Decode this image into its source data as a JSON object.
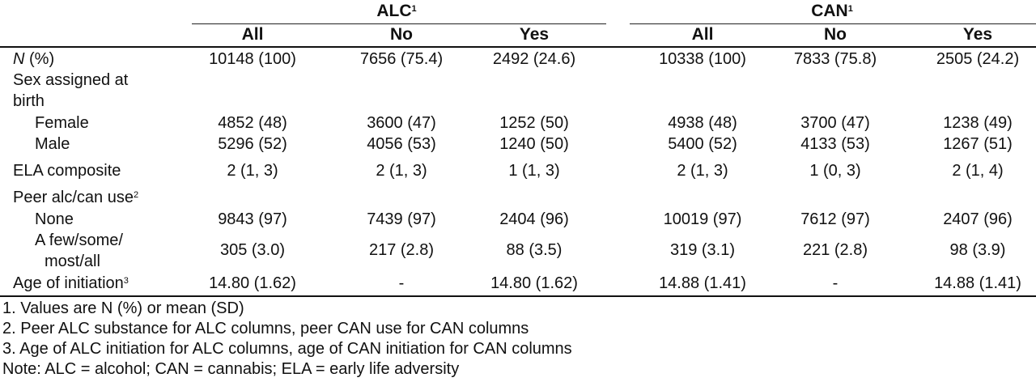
{
  "group_headers": [
    {
      "label": "ALC",
      "note": "1"
    },
    {
      "label": "CAN",
      "note": "1"
    }
  ],
  "columns": [
    "All",
    "No",
    "Yes",
    "All",
    "No",
    "Yes"
  ],
  "rows": [
    {
      "label_italic": "N",
      "label_rest": " (%)",
      "cells": [
        "10148 (100)",
        "7656 (75.4)",
        "2492 (24.6)",
        "10338 (100)",
        "7833 (75.8)",
        "2505 (24.2)"
      ]
    },
    {
      "label_line1": "Sex assigned at",
      "label_line2": "birth"
    },
    {
      "label": "Female",
      "cells": [
        "4852 (48)",
        "3600 (47)",
        "1252 (50)",
        "4938 (48)",
        "3700 (47)",
        "1238 (49)"
      ]
    },
    {
      "label": "Male",
      "cells": [
        "5296 (52)",
        "4056 (53)",
        "1240 (50)",
        "5400 (52)",
        "4133 (53)",
        "1267 (51)"
      ]
    },
    {
      "label": "ELA composite",
      "cells": [
        "2 (1, 3)",
        "2 (1, 3)",
        "1 (1, 3)",
        "2 (1, 3)",
        "1 (0, 3)",
        "2 (1, 4)"
      ]
    },
    {
      "label": "Peer alc/can use",
      "note": "2"
    },
    {
      "label": "None",
      "cells": [
        "9843 (97)",
        "7439 (97)",
        "2404 (96)",
        "10019 (97)",
        "7612 (97)",
        "2407 (96)"
      ]
    },
    {
      "label_line1": "A few/some/",
      "label_line2": "most/all",
      "cells": [
        "305 (3.0)",
        "217 (2.8)",
        "88 (3.5)",
        "319 (3.1)",
        "221 (2.8)",
        "98 (3.9)"
      ]
    },
    {
      "label": "Age of initiation",
      "note": "3",
      "cells": [
        "14.80 (1.62)",
        "-",
        "14.80 (1.62)",
        "14.88 (1.41)",
        "-",
        "14.88 (1.41)"
      ]
    }
  ],
  "footnotes": [
    "1. Values are N (%) or mean (SD)",
    "2. Peer ALC substance for ALC columns, peer CAN use for CAN columns",
    "3. Age of ALC initiation for ALC columns, age of CAN initiation for CAN columns",
    "Note: ALC = alcohol; CAN = cannabis; ELA = early life adversity"
  ]
}
